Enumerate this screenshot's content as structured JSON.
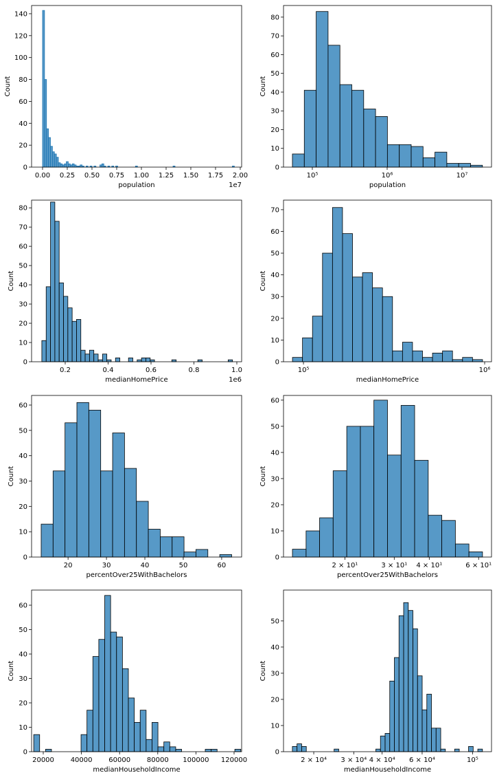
{
  "chart_data": [
    {
      "type": "histogram",
      "xlabel": "population",
      "ylabel": "Count",
      "offset_text": "1e7",
      "color": "#1f77b4",
      "edgecolor": "#1f77b4",
      "xscale": "linear",
      "xlim": [
        -1110000,
        20140000
      ],
      "ylim": [
        0,
        147.5
      ],
      "xticks": [
        {
          "value": 0,
          "label": "0.00"
        },
        {
          "value": 2500000,
          "label": "0.25"
        },
        {
          "value": 5000000,
          "label": "0.50"
        },
        {
          "value": 7500000,
          "label": "0.75"
        },
        {
          "value": 10000000,
          "label": "1.00"
        },
        {
          "value": 12500000,
          "label": "1.25"
        },
        {
          "value": 15000000,
          "label": "1.50"
        },
        {
          "value": 17500000,
          "label": "1.75"
        },
        {
          "value": 20000000,
          "label": "2.00"
        }
      ],
      "yticks": [
        0,
        20,
        40,
        60,
        80,
        100,
        120,
        140
      ],
      "bins": [
        0,
        200000,
        400000,
        600000,
        800000,
        1000000,
        1200000,
        1400000,
        1600000,
        1800000,
        2000000,
        2200000,
        2400000,
        2600000,
        2800000,
        3000000,
        3200000,
        3400000,
        3600000,
        3800000,
        4000000,
        4200000,
        4400000,
        4600000,
        4800000,
        5000000,
        5200000,
        5400000,
        5600000,
        5800000,
        6000000,
        6200000,
        6400000,
        6600000,
        6800000,
        7000000,
        7200000,
        7400000,
        7600000,
        7800000,
        8000000,
        8200000,
        8400000,
        8600000,
        8800000,
        9000000,
        9200000,
        9400000,
        9600000,
        9800000,
        10000000,
        10200000,
        10400000,
        10600000,
        10800000,
        11000000,
        11200000,
        11400000,
        11600000,
        11800000,
        12000000,
        12200000,
        12400000,
        12600000,
        12800000,
        13000000,
        13200000,
        13400000,
        13600000,
        13800000,
        14000000,
        14200000,
        14400000,
        14600000,
        14800000,
        15000000,
        15200000,
        15400000,
        15600000,
        15800000,
        16000000,
        16200000,
        16400000,
        16600000,
        16800000,
        17000000,
        17200000,
        17400000,
        17600000,
        17800000,
        18000000,
        18200000,
        18400000,
        18600000,
        18800000,
        19000000,
        19200000,
        19400000,
        19600000
      ],
      "values": [
        143,
        80,
        35,
        27,
        19,
        14,
        12,
        9,
        4,
        3,
        2,
        3,
        5,
        3,
        2,
        3,
        2,
        1,
        1,
        2,
        1,
        0,
        1,
        0,
        1,
        0,
        1,
        0,
        0,
        2,
        3,
        1,
        0,
        1,
        0,
        1,
        0,
        1,
        0,
        0,
        0,
        0,
        0,
        0,
        0,
        0,
        0,
        1,
        0,
        0,
        0,
        0,
        0,
        0,
        0,
        0,
        0,
        0,
        0,
        0,
        0,
        0,
        0,
        0,
        0,
        0,
        1,
        0,
        0,
        0,
        0,
        0,
        0,
        0,
        0,
        0,
        0,
        0,
        0,
        0,
        0,
        0,
        0,
        0,
        0,
        0,
        0,
        0,
        0,
        0,
        0,
        0,
        0,
        0,
        0,
        0,
        1,
        0
      ]
    },
    {
      "type": "histogram",
      "xlabel": "population",
      "ylabel": "Count",
      "color": "#1f77b4",
      "edgecolor": "#000000",
      "xscale": "log",
      "xlim": [
        41200,
        24800000
      ],
      "ylim": [
        0,
        86.2
      ],
      "xticks": [
        {
          "value": 100000,
          "label": "10⁵"
        },
        {
          "value": 1000000,
          "label": "10⁶"
        },
        {
          "value": 10000000,
          "label": "10⁷"
        }
      ],
      "yticks": [
        0,
        10,
        20,
        30,
        40,
        50,
        60,
        70,
        80
      ],
      "bins": [
        54200,
        78100,
        112600,
        162300,
        233800,
        336900,
        485600,
        699700,
        1008000,
        1453000,
        2094000,
        3018000,
        4349000,
        6268000,
        9033000,
        13020000,
        18760000
      ],
      "values": [
        7,
        41,
        83,
        65,
        44,
        41,
        31,
        27,
        12,
        12,
        11,
        5,
        8,
        2,
        2,
        1
      ]
    },
    {
      "type": "histogram",
      "xlabel": "medianHomePrice",
      "ylabel": "Count",
      "offset_text": "1e6",
      "color": "#1f77b4",
      "edgecolor": "#000000",
      "xscale": "linear",
      "xlim": [
        43200,
        1022400
      ],
      "ylim": [
        0,
        84
      ],
      "xticks": [
        {
          "value": 200000,
          "label": "0.2"
        },
        {
          "value": 400000,
          "label": "0.4"
        },
        {
          "value": 600000,
          "label": "0.6"
        },
        {
          "value": 800000,
          "label": "0.8"
        },
        {
          "value": 1000000,
          "label": "1.0"
        }
      ],
      "yticks": [
        0,
        10,
        20,
        30,
        40,
        50,
        60,
        70,
        80
      ],
      "bins": [
        91000,
        111200,
        131400,
        151600,
        171800,
        192000,
        212200,
        232400,
        252600,
        272800,
        293000,
        313200,
        333400,
        353600,
        373800,
        394000,
        414200,
        434400,
        454600,
        474800,
        495000,
        515200,
        535400,
        555600,
        575800,
        596000,
        616200,
        636400,
        656600,
        676800,
        697000,
        717200,
        737400,
        757600,
        777800,
        798000,
        818200,
        838400,
        858600,
        878800,
        899000,
        919200,
        939400,
        959600,
        979800
      ],
      "values": [
        11,
        39,
        83,
        73,
        41,
        34,
        28,
        21,
        22,
        6,
        4,
        6,
        4,
        1,
        4,
        1,
        0,
        2,
        0,
        0,
        2,
        0,
        1,
        2,
        2,
        1,
        0,
        0,
        0,
        0,
        1,
        0,
        0,
        0,
        0,
        0,
        1,
        0,
        0,
        0,
        0,
        0,
        0,
        1
      ]
    },
    {
      "type": "histogram",
      "xlabel": "medianHomePrice",
      "ylabel": "Count",
      "color": "#1f77b4",
      "edgecolor": "#000000",
      "xscale": "log",
      "xlim": [
        77600,
        1091000
      ],
      "ylim": [
        0,
        74.4
      ],
      "xticks": [
        {
          "value": 100000,
          "label": "10⁵"
        },
        {
          "value": 1000000,
          "label": "10⁶"
        }
      ],
      "yticks": [
        0,
        10,
        20,
        30,
        40,
        50,
        60,
        70
      ],
      "bins": [
        86970,
        98760,
        112150,
        127350,
        144610,
        164210,
        186470,
        211740,
        240440,
        273030,
        310040,
        352060,
        399780,
        453960,
        515500,
        585370,
        664720,
        754820,
        857130,
        973280
      ],
      "values": [
        2,
        11,
        21,
        50,
        71,
        59,
        39,
        41,
        34,
        30,
        5,
        9,
        5,
        2,
        4,
        5,
        1,
        2,
        1
      ]
    },
    {
      "type": "histogram",
      "xlabel": "percentOver25WithBachelors",
      "ylabel": "Count",
      "color": "#1f77b4",
      "edgecolor": "#000000",
      "xscale": "linear",
      "xlim": [
        10.5,
        65.2
      ],
      "ylim": [
        0,
        63.8
      ],
      "xticks": [
        20,
        30,
        40,
        50,
        60
      ],
      "yticks": [
        0,
        10,
        20,
        30,
        40,
        50,
        60
      ],
      "bins": [
        13,
        16.1,
        19.2,
        22.3,
        25.4,
        28.5,
        31.6,
        34.7,
        37.8,
        40.9,
        44,
        47.1,
        50.2,
        53.3,
        56.4,
        59.5,
        62.6
      ],
      "values": [
        13,
        34,
        53,
        61,
        58,
        34,
        49,
        35,
        22,
        11,
        8,
        8,
        2,
        3,
        0,
        1
      ]
    },
    {
      "type": "histogram",
      "xlabel": "percentOver25WithBachelors",
      "ylabel": "Count",
      "color": "#1f77b4",
      "edgecolor": "#000000",
      "xscale": "log",
      "xlim": [
        12.08,
        66.7
      ],
      "ylim": [
        0,
        61.8
      ],
      "xticks": [
        {
          "value": 20,
          "label": "2 × 10¹"
        },
        {
          "value": 30,
          "label": "3 × 10¹"
        },
        {
          "value": 40,
          "label": "4 × 10¹"
        },
        {
          "value": 60,
          "label": "6 × 10¹"
        }
      ],
      "yticks": [
        0,
        10,
        20,
        30,
        40,
        50,
        60
      ],
      "bins": [
        13.0,
        14.54,
        16.25,
        18.16,
        20.31,
        22.71,
        25.38,
        28.38,
        31.73,
        35.47,
        39.66,
        44.33,
        49.57,
        55.41,
        61.94
      ],
      "values": [
        3,
        10,
        15,
        33,
        50,
        50,
        60,
        39,
        58,
        37,
        16,
        14,
        5,
        2
      ]
    },
    {
      "type": "histogram",
      "xlabel": "medianHouseholdIncome",
      "ylabel": "Count",
      "color": "#1f77b4",
      "edgecolor": "#000000",
      "xscale": "linear",
      "xlim": [
        13880,
        123960
      ],
      "ylim": [
        0,
        66.2
      ],
      "xticks": [
        20000,
        40000,
        60000,
        80000,
        100000,
        120000
      ],
      "yticks": [
        0,
        10,
        20,
        30,
        40,
        50,
        60
      ],
      "bins": [
        15000,
        18100,
        21200,
        24300,
        27400,
        30500,
        33600,
        36700,
        39800,
        42900,
        46000,
        49100,
        52200,
        55300,
        58400,
        61500,
        64600,
        67700,
        70800,
        73900,
        77000,
        80100,
        83200,
        86300,
        89400,
        92500,
        95600,
        98700,
        101800,
        104900,
        108000,
        111100,
        114200,
        117300,
        120400,
        123500
      ],
      "values": [
        7,
        0,
        1,
        0,
        0,
        0,
        0,
        0,
        7,
        17,
        39,
        46,
        64,
        49,
        47,
        34,
        22,
        12,
        17,
        5,
        12,
        2,
        4,
        2,
        1,
        0,
        0,
        0,
        0,
        1,
        1,
        0,
        0,
        0,
        1
      ]
    },
    {
      "type": "histogram",
      "xlabel": "medianHouseholdIncome",
      "ylabel": "Count",
      "color": "#1f77b4",
      "edgecolor": "#000000",
      "xscale": "log",
      "xlim": [
        14720,
        121200
      ],
      "ylim": [
        0,
        61.8
      ],
      "xticks": [
        {
          "value": 20000,
          "label": "2 × 10⁴"
        },
        {
          "value": 30000,
          "label": "3 × 10⁴"
        },
        {
          "value": 40000,
          "label": "4 × 10⁴"
        },
        {
          "value": 60000,
          "label": "6 × 10⁴"
        },
        {
          "value": 100000,
          "label": "10⁵"
        }
      ],
      "yticks": [
        0,
        10,
        20,
        30,
        40,
        50
      ],
      "bins": [
        16106,
        16881,
        17693,
        18544,
        19436,
        20371,
        21351,
        22378,
        23455,
        24583,
        25766,
        27005,
        28304,
        29666,
        31093,
        32589,
        34157,
        35800,
        37522,
        39327,
        41219,
        43202,
        45280,
        47458,
        49741,
        52134,
        54642,
        57271,
        60026,
        62914,
        65940,
        69112,
        72437,
        75922,
        79574,
        83402,
        87414,
        91619,
        96027,
        100646,
        105488,
        110563
      ],
      "values": [
        2,
        3,
        2,
        0,
        0,
        0,
        0,
        0,
        0,
        1,
        0,
        0,
        0,
        0,
        0,
        0,
        0,
        0,
        1,
        6,
        7,
        27,
        36,
        52,
        57,
        54,
        47,
        29,
        16,
        22,
        9,
        9,
        1,
        0,
        0,
        1,
        0,
        0,
        2,
        0,
        1
      ]
    }
  ]
}
